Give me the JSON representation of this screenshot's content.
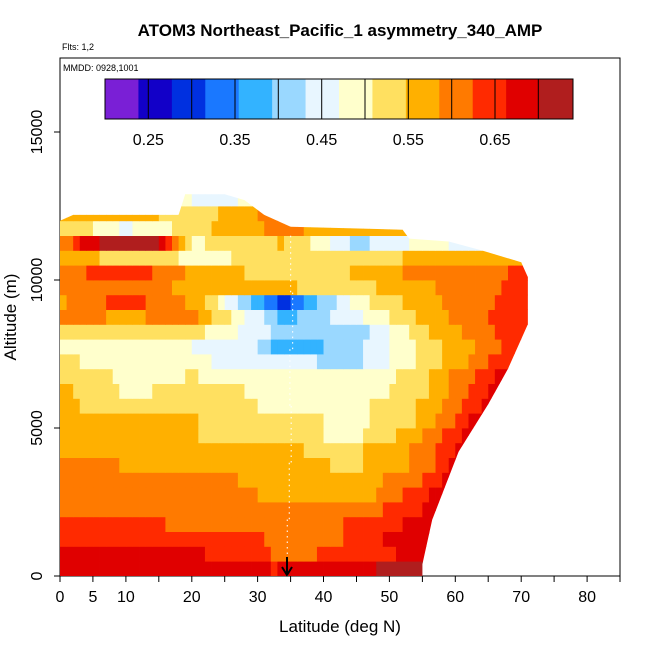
{
  "chart_data": {
    "type": "heatmap",
    "title": "ATOM3 Northeast_Pacific_1 asymmetry_340_AMP",
    "subtitle_flights": "Flts: 1,2",
    "subtitle_dates": "MMDD: 0928,1001",
    "xlabel": "Latitude (deg N)",
    "ylabel": "Altitude (m)",
    "xlim": [
      0,
      85
    ],
    "ylim": [
      0,
      17500
    ],
    "x_ticks": [
      0,
      5,
      10,
      20,
      30,
      40,
      50,
      60,
      70,
      80
    ],
    "x_minor_ticks": [
      15,
      25,
      35,
      45,
      55,
      65,
      75,
      85
    ],
    "y_ticks": [
      0,
      5000,
      10000,
      15000
    ],
    "colorbar": {
      "range": [
        0.2,
        0.74
      ],
      "tick_values": [
        0.25,
        0.35,
        0.45,
        0.55,
        0.65
      ],
      "tick_labels": [
        "0.25",
        "0.35",
        "0.45",
        "0.55",
        "0.65"
      ],
      "divisions": [
        0.25,
        0.3,
        0.35,
        0.4,
        0.45,
        0.5,
        0.55,
        0.6,
        0.65,
        0.7
      ],
      "colors": [
        "#7a1fd6",
        "#1200c8",
        "#0030e0",
        "#1a78ff",
        "#33b3ff",
        "#9ad8ff",
        "#e8f6ff",
        "#ffffcc",
        "#ffe060",
        "#ffb000",
        "#ff7a00",
        "#ff2a00",
        "#e00000",
        "#b01e1e"
      ]
    },
    "field_description_units": "asymmetry parameter vs latitude and altitude",
    "outer_boundary": [
      [
        0,
        0
      ],
      [
        55,
        0
      ],
      [
        55,
        400
      ],
      [
        56.5,
        1900
      ],
      [
        60.5,
        4200
      ],
      [
        65,
        5800
      ],
      [
        68,
        7000
      ],
      [
        71,
        8500
      ],
      [
        71,
        10100
      ],
      [
        70,
        10600
      ],
      [
        64,
        11000
      ],
      [
        59,
        11300
      ],
      [
        53,
        11400
      ],
      [
        52,
        11700
      ],
      [
        35,
        11800
      ],
      [
        31,
        12200
      ],
      [
        28,
        12700
      ],
      [
        25,
        12900
      ],
      [
        19,
        12900
      ],
      [
        18,
        12200
      ],
      [
        2,
        12200
      ],
      [
        0,
        12000
      ]
    ],
    "bands": [
      {
        "y0": 0,
        "y1": 500,
        "stops": [
          [
            0,
            0.69
          ],
          [
            20,
            0.69
          ],
          [
            33,
            0.66
          ],
          [
            38,
            0.69
          ],
          [
            55,
            0.71
          ]
        ]
      },
      {
        "y0": 500,
        "y1": 1000,
        "stops": [
          [
            0,
            0.69
          ],
          [
            20,
            0.67
          ],
          [
            33,
            0.62
          ],
          [
            38,
            0.62
          ],
          [
            45,
            0.64
          ],
          [
            55,
            0.68
          ]
        ]
      },
      {
        "y0": 1000,
        "y1": 1500,
        "stops": [
          [
            0,
            0.65
          ],
          [
            20,
            0.65
          ],
          [
            33,
            0.62
          ],
          [
            40,
            0.6
          ],
          [
            48,
            0.66
          ],
          [
            56,
            0.69
          ]
        ]
      },
      {
        "y0": 1500,
        "y1": 2000,
        "stops": [
          [
            0,
            0.64
          ],
          [
            20,
            0.62
          ],
          [
            35,
            0.6
          ],
          [
            45,
            0.63
          ],
          [
            55,
            0.68
          ],
          [
            57,
            0.69
          ]
        ]
      },
      {
        "y0": 2000,
        "y1": 2500,
        "stops": [
          [
            0,
            0.62
          ],
          [
            20,
            0.61
          ],
          [
            34,
            0.59
          ],
          [
            44,
            0.6
          ],
          [
            52,
            0.64
          ],
          [
            58,
            0.69
          ]
        ]
      },
      {
        "y0": 2500,
        "y1": 3000,
        "stops": [
          [
            0,
            0.61
          ],
          [
            20,
            0.6
          ],
          [
            34,
            0.58
          ],
          [
            45,
            0.56
          ],
          [
            52,
            0.62
          ],
          [
            59,
            0.69
          ]
        ]
      },
      {
        "y0": 3000,
        "y1": 3500,
        "stops": [
          [
            0,
            0.6
          ],
          [
            20,
            0.6
          ],
          [
            34,
            0.57
          ],
          [
            45,
            0.56
          ],
          [
            55,
            0.62
          ],
          [
            60,
            0.69
          ]
        ]
      },
      {
        "y0": 3500,
        "y1": 4000,
        "stops": [
          [
            0,
            0.59
          ],
          [
            20,
            0.58
          ],
          [
            34,
            0.56
          ],
          [
            45,
            0.54
          ],
          [
            55,
            0.6
          ],
          [
            61,
            0.69
          ]
        ]
      },
      {
        "y0": 4000,
        "y1": 4500,
        "stops": [
          [
            0,
            0.56
          ],
          [
            15,
            0.58
          ],
          [
            25,
            0.57
          ],
          [
            34,
            0.55
          ],
          [
            45,
            0.54
          ],
          [
            55,
            0.6
          ],
          [
            62,
            0.69
          ]
        ]
      },
      {
        "y0": 4500,
        "y1": 5000,
        "stops": [
          [
            0,
            0.57
          ],
          [
            15,
            0.56
          ],
          [
            25,
            0.54
          ],
          [
            34,
            0.52
          ],
          [
            45,
            0.5
          ],
          [
            55,
            0.58
          ],
          [
            63,
            0.69
          ]
        ]
      },
      {
        "y0": 5000,
        "y1": 5500,
        "stops": [
          [
            0,
            0.58
          ],
          [
            10,
            0.56
          ],
          [
            20,
            0.55
          ],
          [
            34,
            0.52
          ],
          [
            45,
            0.5
          ],
          [
            55,
            0.55
          ],
          [
            64,
            0.69
          ]
        ]
      },
      {
        "y0": 5500,
        "y1": 6000,
        "stops": [
          [
            0,
            0.56
          ],
          [
            10,
            0.52
          ],
          [
            20,
            0.53
          ],
          [
            34,
            0.5
          ],
          [
            45,
            0.5
          ],
          [
            55,
            0.55
          ],
          [
            65,
            0.68
          ]
        ]
      },
      {
        "y0": 6000,
        "y1": 6500,
        "stops": [
          [
            0,
            0.56
          ],
          [
            10,
            0.5
          ],
          [
            20,
            0.52
          ],
          [
            34,
            0.5
          ],
          [
            45,
            0.48
          ],
          [
            55,
            0.54
          ],
          [
            66,
            0.68
          ]
        ]
      },
      {
        "y0": 6500,
        "y1": 7000,
        "stops": [
          [
            0,
            0.54
          ],
          [
            10,
            0.5
          ],
          [
            20,
            0.51
          ],
          [
            34,
            0.48
          ],
          [
            45,
            0.47
          ],
          [
            55,
            0.54
          ],
          [
            68,
            0.68
          ]
        ]
      },
      {
        "y0": 7000,
        "y1": 7500,
        "stops": [
          [
            0,
            0.52
          ],
          [
            10,
            0.48
          ],
          [
            20,
            0.48
          ],
          [
            34,
            0.44
          ],
          [
            45,
            0.42
          ],
          [
            55,
            0.52
          ],
          [
            70,
            0.67
          ]
        ]
      },
      {
        "y0": 7500,
        "y1": 8000,
        "stops": [
          [
            0,
            0.5
          ],
          [
            10,
            0.48
          ],
          [
            20,
            0.47
          ],
          [
            30,
            0.44
          ],
          [
            34,
            0.36
          ],
          [
            45,
            0.42
          ],
          [
            55,
            0.52
          ],
          [
            71,
            0.66
          ]
        ]
      },
      {
        "y0": 8000,
        "y1": 8500,
        "stops": [
          [
            0,
            0.54
          ],
          [
            10,
            0.51
          ],
          [
            20,
            0.52
          ],
          [
            34,
            0.42
          ],
          [
            45,
            0.41
          ],
          [
            55,
            0.54
          ],
          [
            71,
            0.66
          ]
        ]
      },
      {
        "y0": 8500,
        "y1": 9000,
        "stops": [
          [
            0,
            0.6
          ],
          [
            10,
            0.58
          ],
          [
            20,
            0.6
          ],
          [
            34,
            0.38
          ],
          [
            45,
            0.46
          ],
          [
            55,
            0.56
          ],
          [
            71,
            0.66
          ]
        ]
      },
      {
        "y0": 9000,
        "y1": 9500,
        "stops": [
          [
            0,
            0.58
          ],
          [
            10,
            0.64
          ],
          [
            20,
            0.58
          ],
          [
            34,
            0.3
          ],
          [
            45,
            0.49
          ],
          [
            55,
            0.57
          ],
          [
            71,
            0.65
          ]
        ]
      },
      {
        "y0": 9500,
        "y1": 10000,
        "stops": [
          [
            0,
            0.6
          ],
          [
            10,
            0.6
          ],
          [
            20,
            0.58
          ],
          [
            34,
            0.55
          ],
          [
            45,
            0.53
          ],
          [
            55,
            0.58
          ],
          [
            71,
            0.64
          ]
        ]
      },
      {
        "y0": 10000,
        "y1": 10500,
        "stops": [
          [
            0,
            0.6
          ],
          [
            10,
            0.66
          ],
          [
            20,
            0.58
          ],
          [
            34,
            0.52
          ],
          [
            45,
            0.55
          ],
          [
            55,
            0.6
          ],
          [
            71,
            0.63
          ]
        ]
      },
      {
        "y0": 10500,
        "y1": 11000,
        "stops": [
          [
            0,
            0.56
          ],
          [
            10,
            0.54
          ],
          [
            20,
            0.5
          ],
          [
            34,
            0.52
          ],
          [
            45,
            0.52
          ],
          [
            55,
            0.56
          ],
          [
            70,
            0.57
          ]
        ]
      },
      {
        "y0": 11000,
        "y1": 11500,
        "stops": [
          [
            0,
            0.58
          ],
          [
            5,
            0.7
          ],
          [
            15,
            0.72
          ],
          [
            20,
            0.5
          ],
          [
            34,
            0.55
          ],
          [
            45,
            0.42
          ],
          [
            55,
            0.48
          ],
          [
            64,
            0.46
          ]
        ]
      },
      {
        "y0": 11500,
        "y1": 12000,
        "stops": [
          [
            0,
            0.55
          ],
          [
            10,
            0.46
          ],
          [
            20,
            0.53
          ],
          [
            34,
            0.6
          ],
          [
            45,
            0.55
          ],
          [
            53,
            0.58
          ]
        ]
      },
      {
        "y0": 12000,
        "y1": 12500,
        "stops": [
          [
            0,
            0.55
          ],
          [
            10,
            0.58
          ],
          [
            20,
            0.52
          ],
          [
            28,
            0.58
          ],
          [
            34,
            0.6
          ]
        ]
      },
      {
        "y0": 12500,
        "y1": 13000,
        "stops": [
          [
            18,
            0.5
          ],
          [
            22,
            0.44
          ],
          [
            28,
            0.48
          ],
          [
            31,
            0.5
          ]
        ]
      }
    ],
    "flight_track_lat": [
      34.5,
      34.8,
      35.1,
      34.9,
      35.3,
      35.0
    ]
  }
}
